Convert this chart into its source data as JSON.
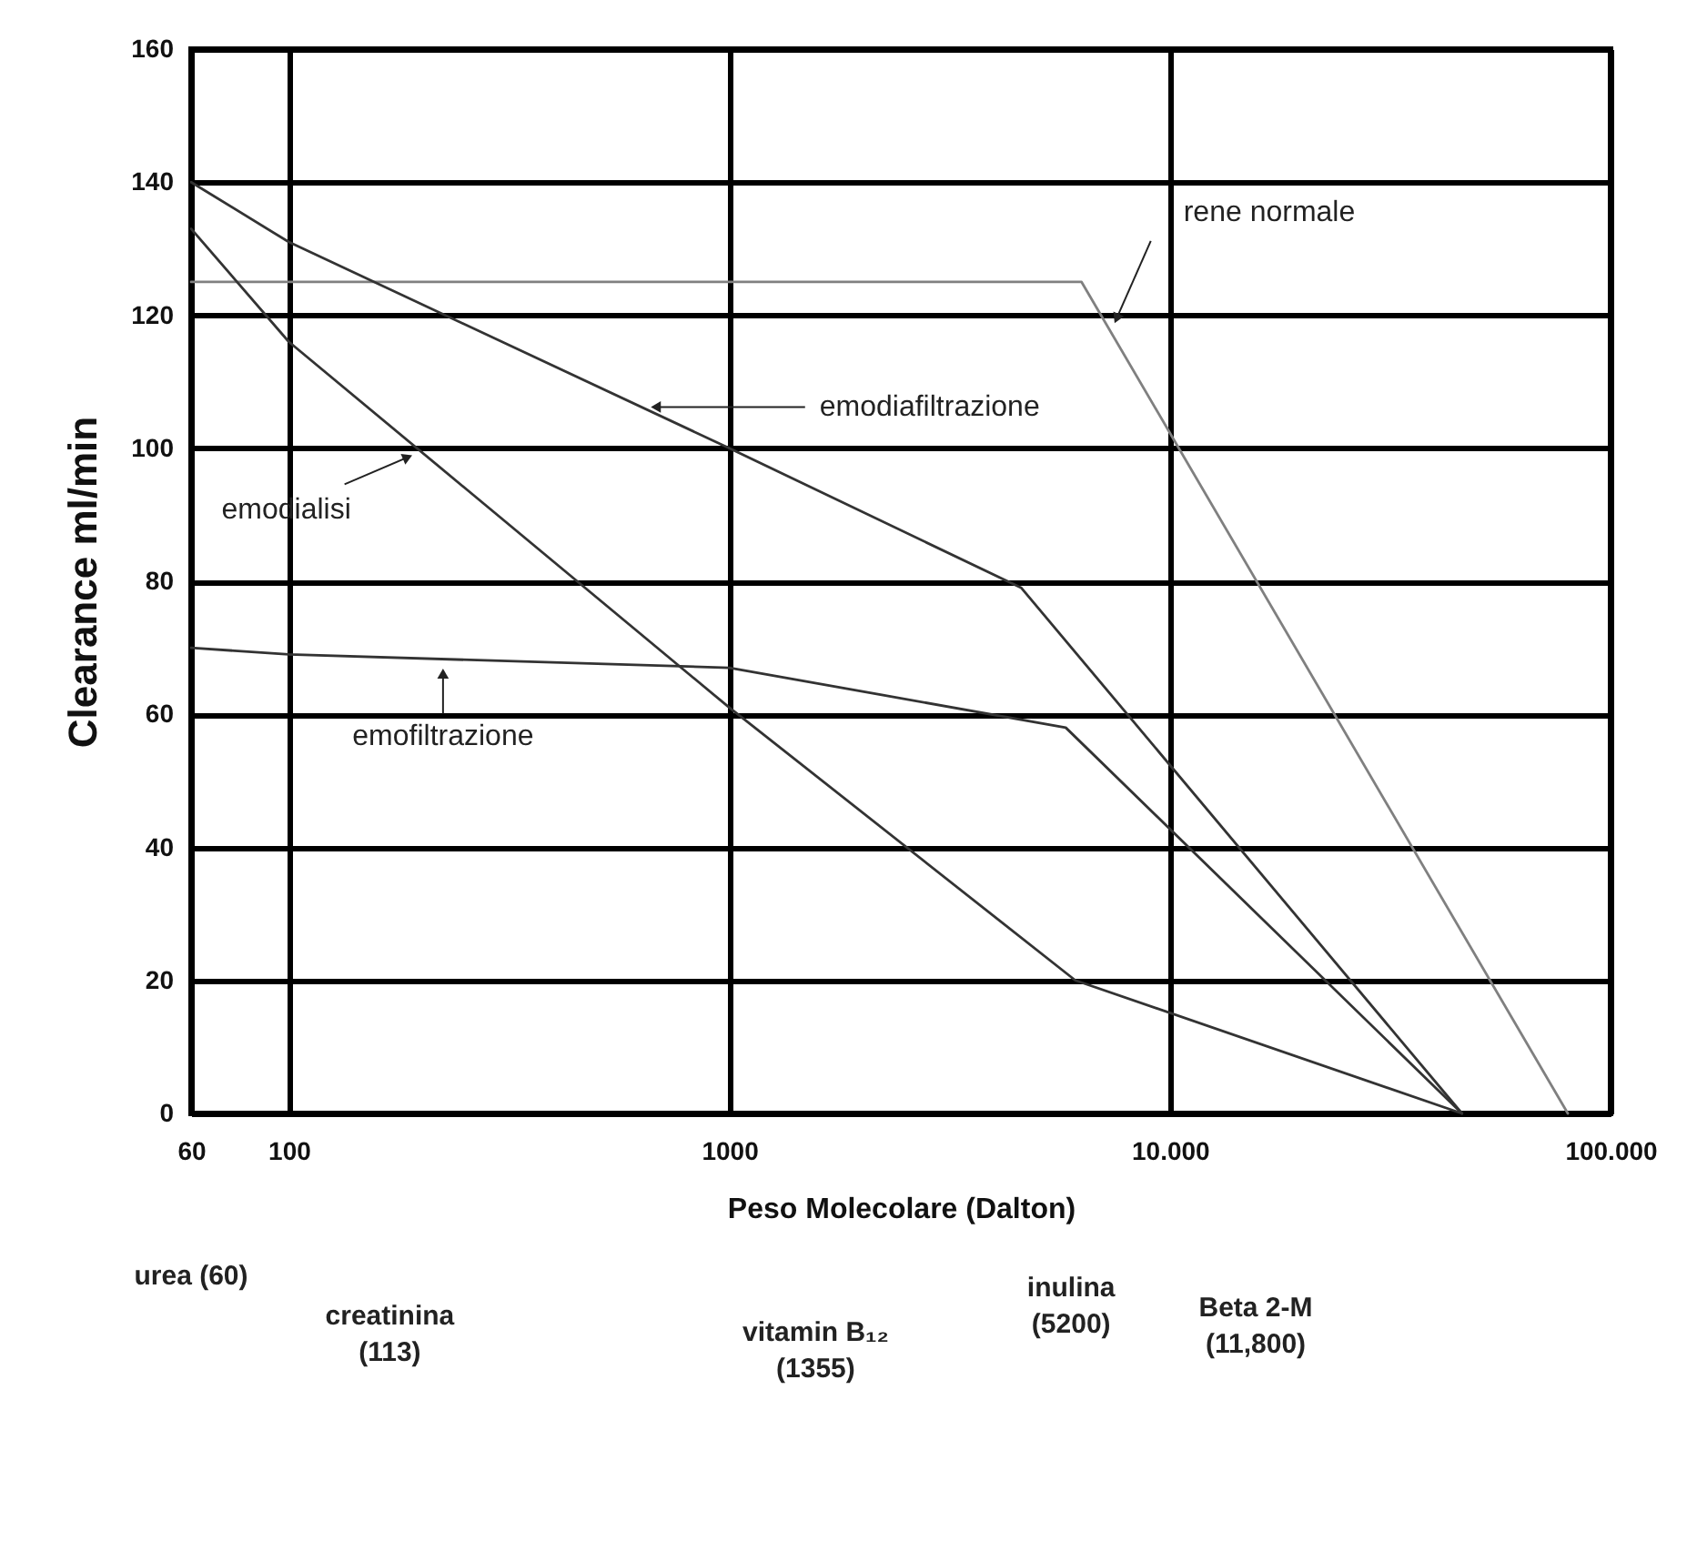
{
  "chart_data": {
    "type": "line",
    "xlabel": "Peso Molecolare  (Dalton)",
    "ylabel": "Clearance ml/min",
    "log": "x",
    "grid": true,
    "xlim": [
      60,
      100000
    ],
    "xticks": [
      60,
      100,
      1000,
      {
        "value": 10000,
        "label": "10.000"
      },
      {
        "value": 100000,
        "label": "100.000"
      }
    ],
    "ylim": [
      0,
      160
    ],
    "yticks": [
      0,
      20,
      40,
      60,
      80,
      100,
      120,
      140,
      160
    ],
    "series": [
      {
        "name": "rene normale",
        "color": "#808080",
        "x": [
          60,
          6300,
          80000
        ],
        "values": [
          125,
          125,
          0
        ]
      },
      {
        "name": "emodiafiltrazione",
        "color": "#333333",
        "x": [
          60,
          100,
          1000,
          4600,
          46000
        ],
        "values": [
          140,
          131,
          100,
          79,
          0
        ]
      },
      {
        "name": "emofiltrazione",
        "color": "#333333",
        "x": [
          60,
          100,
          1000,
          5800,
          46000
        ],
        "values": [
          70,
          69,
          67,
          58,
          0
        ]
      },
      {
        "name": "emodialisi",
        "color": "#333333",
        "x": [
          60,
          100,
          1000,
          6100,
          46000
        ],
        "values": [
          133,
          116,
          61,
          20,
          0
        ]
      }
    ],
    "annotations": [
      "urea (60)",
      "creatinina\n(113)",
      "vitamin B₁₂\n(1355)",
      "inulina\n(5200)",
      "Beta 2-M\n(11,800)"
    ]
  }
}
